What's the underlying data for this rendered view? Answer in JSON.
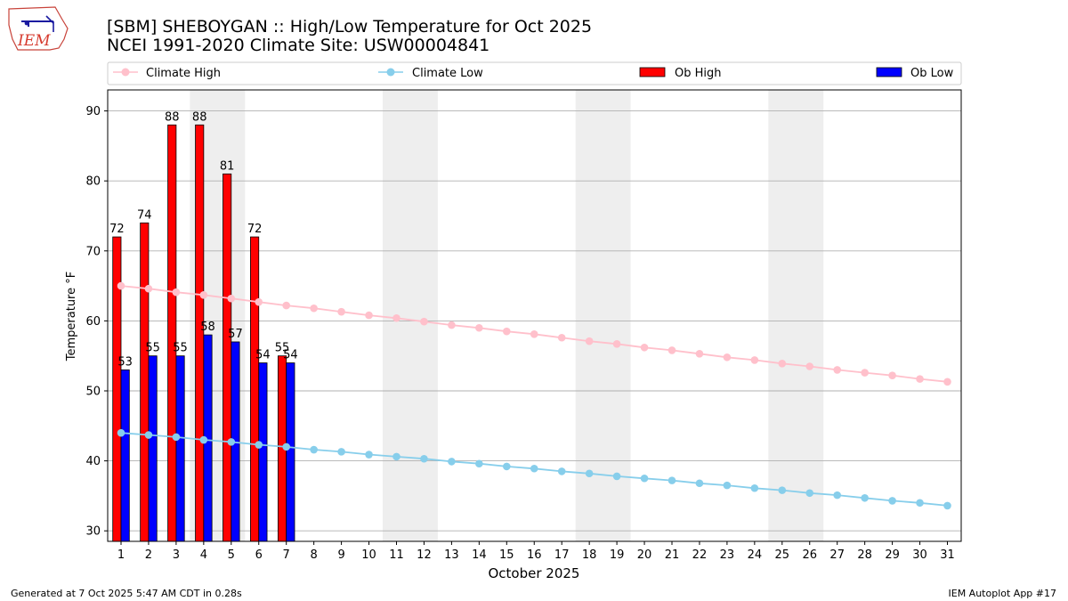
{
  "page": {
    "footer_left": "Generated at 7 Oct 2025 5:47 AM CDT in 0.28s",
    "footer_right": "IEM Autoplot App #17",
    "logo_text": "IEM"
  },
  "chart_data": {
    "type": "bar",
    "title": "[SBM] SHEBOYGAN :: High/Low Temperature for Oct 2025",
    "subtitle": "NCEI 1991-2020 Climate Site: USW00004841",
    "xlabel": "October 2025",
    "ylabel": "Temperature °F",
    "ylim": [
      28.5,
      93
    ],
    "yticks": [
      30,
      40,
      50,
      60,
      70,
      80,
      90
    ],
    "grid": "horizontal",
    "legend_position": "top",
    "days": [
      1,
      2,
      3,
      4,
      5,
      6,
      7,
      8,
      9,
      10,
      11,
      12,
      13,
      14,
      15,
      16,
      17,
      18,
      19,
      20,
      21,
      22,
      23,
      24,
      25,
      26,
      27,
      28,
      29,
      30,
      31
    ],
    "weekend_spans": [
      [
        4,
        5
      ],
      [
        11,
        12
      ],
      [
        18,
        19
      ],
      [
        25,
        26
      ]
    ],
    "series": [
      {
        "name": "Climate High",
        "kind": "line",
        "color": "#ffc0cb",
        "values": [
          65.0,
          64.6,
          64.1,
          63.7,
          63.2,
          62.7,
          62.2,
          61.8,
          61.3,
          60.8,
          60.4,
          59.9,
          59.4,
          59.0,
          58.5,
          58.1,
          57.6,
          57.1,
          56.7,
          56.2,
          55.8,
          55.3,
          54.8,
          54.4,
          53.9,
          53.5,
          53.0,
          52.6,
          52.2,
          51.7,
          51.3
        ]
      },
      {
        "name": "Climate Low",
        "kind": "line",
        "color": "#87ceeb",
        "values": [
          44.0,
          43.7,
          43.4,
          43.0,
          42.7,
          42.3,
          42.0,
          41.6,
          41.3,
          40.9,
          40.6,
          40.3,
          39.9,
          39.6,
          39.2,
          38.9,
          38.5,
          38.2,
          37.8,
          37.5,
          37.2,
          36.8,
          36.5,
          36.1,
          35.8,
          35.4,
          35.1,
          34.7,
          34.3,
          34.0,
          33.6
        ]
      },
      {
        "name": "Ob High",
        "kind": "bar",
        "color": "#ff0000",
        "values": [
          72,
          74,
          88,
          88,
          81,
          72,
          55
        ]
      },
      {
        "name": "Ob Low",
        "kind": "bar",
        "color": "#0000ff",
        "values": [
          53,
          55,
          55,
          58,
          57,
          54,
          54
        ]
      }
    ]
  }
}
